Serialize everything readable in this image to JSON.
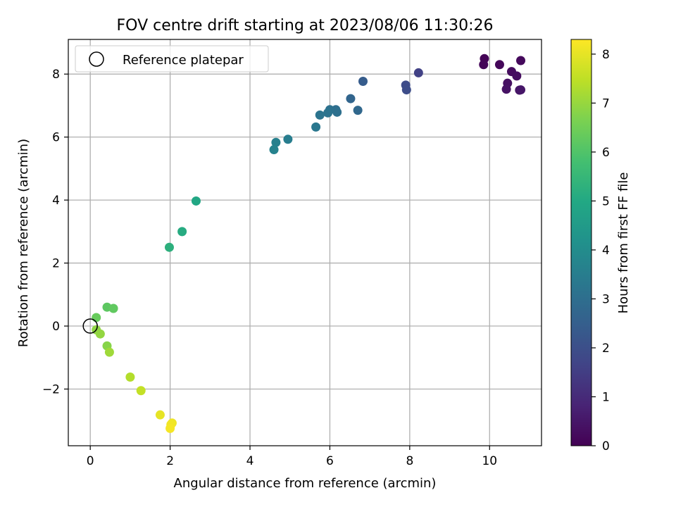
{
  "chart_data": {
    "type": "scatter",
    "title": "FOV centre drift starting at 2023/08/06 11:30:26",
    "xlabel": "Angular distance from reference (arcmin)",
    "ylabel": "Rotation from reference (arcmin)",
    "xlim": [
      -0.55,
      11.3
    ],
    "ylim": [
      -3.8,
      9.1
    ],
    "xticks": [
      0,
      2,
      4,
      6,
      8,
      10
    ],
    "yticks": [
      -2,
      0,
      2,
      4,
      6,
      8
    ],
    "xtick_labels": [
      "0",
      "2",
      "4",
      "6",
      "8",
      "10"
    ],
    "ytick_labels": [
      "−2",
      "0",
      "2",
      "4",
      "6",
      "8"
    ],
    "grid": true,
    "legend": {
      "placement": "top-left",
      "entries": [
        "Reference platepar"
      ]
    },
    "reference_point": {
      "x": 0,
      "y": 0
    },
    "colorbar": {
      "label": "Hours from first FF file",
      "colormap": "viridis",
      "range": [
        0,
        8.3
      ],
      "ticks": [
        0,
        1,
        2,
        3,
        4,
        5,
        6,
        7,
        8
      ],
      "tick_labels": [
        "0",
        "1",
        "2",
        "3",
        "4",
        "5",
        "6",
        "7",
        "8"
      ]
    },
    "series": [
      {
        "points": [
          {
            "x": 9.87,
            "y": 8.49,
            "hours": 0.05
          },
          {
            "x": 9.85,
            "y": 8.3,
            "hours": 0.1
          },
          {
            "x": 10.25,
            "y": 8.3,
            "hours": 0.15
          },
          {
            "x": 10.78,
            "y": 8.43,
            "hours": 0.2
          },
          {
            "x": 10.55,
            "y": 8.08,
            "hours": 0.25
          },
          {
            "x": 10.68,
            "y": 7.94,
            "hours": 0.3
          },
          {
            "x": 10.45,
            "y": 7.71,
            "hours": 0.35
          },
          {
            "x": 10.42,
            "y": 7.52,
            "hours": 0.4
          },
          {
            "x": 10.75,
            "y": 7.49,
            "hours": 0.45
          },
          {
            "x": 10.78,
            "y": 7.5,
            "hours": 0.5
          },
          {
            "x": 8.22,
            "y": 8.04,
            "hours": 1.6
          },
          {
            "x": 7.9,
            "y": 7.65,
            "hours": 1.9
          },
          {
            "x": 7.92,
            "y": 7.5,
            "hours": 1.95
          },
          {
            "x": 6.83,
            "y": 7.77,
            "hours": 2.4
          },
          {
            "x": 6.52,
            "y": 7.22,
            "hours": 2.7
          },
          {
            "x": 6.7,
            "y": 6.85,
            "hours": 2.8
          },
          {
            "x": 6.15,
            "y": 6.87,
            "hours": 3.0
          },
          {
            "x": 6.18,
            "y": 6.79,
            "hours": 3.05
          },
          {
            "x": 6.0,
            "y": 6.87,
            "hours": 3.1
          },
          {
            "x": 5.95,
            "y": 6.77,
            "hours": 3.15
          },
          {
            "x": 5.75,
            "y": 6.7,
            "hours": 3.2
          },
          {
            "x": 5.65,
            "y": 6.32,
            "hours": 3.3
          },
          {
            "x": 4.95,
            "y": 5.93,
            "hours": 3.5
          },
          {
            "x": 4.65,
            "y": 5.83,
            "hours": 3.6
          },
          {
            "x": 4.6,
            "y": 5.6,
            "hours": 3.65
          },
          {
            "x": 2.65,
            "y": 3.97,
            "hours": 4.95
          },
          {
            "x": 2.3,
            "y": 3.0,
            "hours": 5.1
          },
          {
            "x": 1.98,
            "y": 2.5,
            "hours": 5.25
          },
          {
            "x": 0.42,
            "y": 0.6,
            "hours": 6.2
          },
          {
            "x": 0.58,
            "y": 0.56,
            "hours": 6.25
          },
          {
            "x": 0.15,
            "y": 0.27,
            "hours": 6.35
          },
          {
            "x": 0.42,
            "y": -0.63,
            "hours": 6.8
          },
          {
            "x": 0.15,
            "y": -0.12,
            "hours": 6.9
          },
          {
            "x": 0.25,
            "y": -0.25,
            "hours": 6.95
          },
          {
            "x": 0.48,
            "y": -0.83,
            "hours": 7.1
          },
          {
            "x": 1.0,
            "y": -1.62,
            "hours": 7.35
          },
          {
            "x": 1.27,
            "y": -2.05,
            "hours": 7.55
          },
          {
            "x": 1.75,
            "y": -2.82,
            "hours": 8.0
          },
          {
            "x": 2.05,
            "y": -3.08,
            "hours": 8.1
          },
          {
            "x": 2.02,
            "y": -3.13,
            "hours": 8.15
          },
          {
            "x": 2.0,
            "y": -3.25,
            "hours": 8.2
          }
        ]
      }
    ]
  }
}
